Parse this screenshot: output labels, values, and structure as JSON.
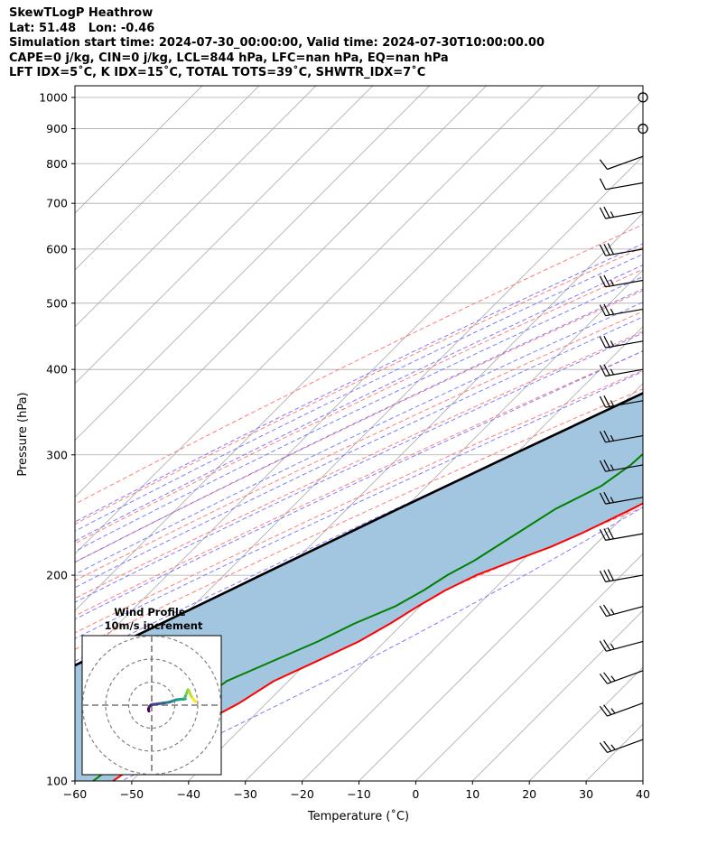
{
  "title_lines": [
    "SkewTLogP Heathrow",
    "Lat: 51.48   Lon: -0.46",
    "Simulation start time: 2024-07-30_00:00:00, Valid time: 2024-07-30T10:00:00.00",
    "CAPE=0 j/kg, CIN=0 j/kg, LCL=844 hPa, LFC=nan hPa, EQ=nan hPa",
    "LFT IDX=5˚C, K IDX=15˚C, TOTAL TOTS=39˚C, SHWTR_IDX=7˚C"
  ],
  "chart_data": {
    "type": "skewt",
    "xlabel": "Temperature (˚C)",
    "ylabel": "Pressure (hPa)",
    "xlim": [
      -60,
      40
    ],
    "ylim": [
      1040,
      100
    ],
    "x_ticks": [
      -60,
      -50,
      -40,
      -30,
      -20,
      -10,
      0,
      10,
      20,
      30,
      40
    ],
    "y_ticks": [
      1000,
      900,
      800,
      700,
      600,
      500,
      400,
      300,
      200,
      100
    ],
    "y_scale": "log",
    "grid": true,
    "colors": {
      "temperature": "#ff0000",
      "dewpoint": "#008000",
      "parcel": "#000000",
      "cape_fill": "#a3c6e0",
      "dry_adiabats": "#ff6666",
      "moist_adiabats": "#6666ff",
      "mixing_ratio": "#9933cc",
      "isotherms": "#aaaaaa"
    },
    "temperature": {
      "p": [
        1010,
        1000,
        970,
        950,
        900,
        850,
        800,
        780,
        750,
        720,
        700,
        650,
        620,
        600,
        550,
        500,
        460,
        420,
        400,
        380,
        350,
        300,
        270,
        250,
        230,
        220,
        210,
        200,
        190,
        180,
        170,
        160,
        150,
        140,
        130,
        120,
        110,
        100
      ],
      "t": [
        25.5,
        24,
        22,
        21.5,
        20.5,
        19.5,
        19,
        19.4,
        19.5,
        19.2,
        18.4,
        16,
        15.2,
        14.3,
        12,
        9.7,
        8.7,
        7.5,
        6.7,
        5.5,
        4.3,
        -1.5,
        -6,
        -9.8,
        -14.5,
        -17.5,
        -21.5,
        -25.6,
        -28.4,
        -30.4,
        -32.2,
        -34.6,
        -38.4,
        -42.6,
        -44.8,
        -48.4,
        -50.9,
        -53.3
      ]
    },
    "dewpoint": {
      "p": [
        1000,
        960,
        930,
        900,
        880,
        860,
        840,
        820,
        800,
        780,
        740,
        700,
        680,
        650,
        600,
        550,
        500,
        460,
        430,
        400,
        370,
        350,
        330,
        310,
        300,
        290,
        270,
        250,
        230,
        210,
        200,
        190,
        180,
        170,
        160,
        140,
        100
      ],
      "t": [
        13.3,
        13.8,
        12.1,
        10.4,
        9.5,
        7.2,
        6.9,
        8.1,
        10.2,
        9.5,
        5,
        3,
        5.3,
        9.6,
        11.6,
        11.5,
        9.4,
        7.1,
        5.4,
        1.9,
        -1.6,
        -6.7,
        -10.8,
        -13.5,
        -17.6,
        -17.8,
        -19.3,
        -23.3,
        -25.8,
        -28.5,
        -30.7,
        -32.2,
        -34.4,
        -38.5,
        -41.8,
        -50.9,
        -56.8
      ]
    },
    "parcel": {
      "p": [
        1010,
        844,
        700,
        600,
        500,
        400,
        300,
        250,
        200,
        150,
        100
      ],
      "t": [
        25.5,
        13.7,
        5.4,
        -1.7,
        -11.2,
        -23.6,
        -40.5,
        -51,
        -63.5,
        -79.5,
        -101
      ]
    },
    "wind_barbs": {
      "p": [
        1000,
        900,
        820,
        750,
        680,
        600,
        540,
        490,
        440,
        400,
        360,
        320,
        290,
        260,
        230,
        200,
        180,
        160,
        145,
        130,
        115
      ],
      "speed_kt": [
        0,
        0,
        10,
        10,
        25,
        30,
        25,
        25,
        25,
        25,
        25,
        25,
        25,
        25,
        30,
        30,
        25,
        25,
        25,
        25,
        25
      ],
      "direction_deg": [
        0,
        0,
        250,
        260,
        260,
        260,
        260,
        260,
        260,
        260,
        260,
        260,
        260,
        260,
        260,
        260,
        255,
        255,
        250,
        250,
        250
      ]
    },
    "hodograph": {
      "title": "Wind Profile",
      "subtitle": "10m/s increment",
      "rings": [
        10,
        20,
        30
      ],
      "u": [
        -1.2,
        -1.4,
        -1.3,
        -1.0,
        -0.6,
        -0.2,
        0.4,
        1.2,
        2.3,
        3.6,
        5.0,
        6.4,
        7.6,
        8.6,
        9.4,
        10.2,
        11.2,
        12.4,
        13.8,
        14.6,
        14.4,
        14.6,
        15.0,
        15.4,
        15.8,
        16.2,
        16.6,
        17.2,
        17.8,
        18.6,
        19.0
      ],
      "v": [
        -2.6,
        -2.1,
        -1.4,
        -0.6,
        -0.2,
        0.1,
        0.3,
        0.4,
        0.5,
        0.7,
        0.9,
        1.1,
        1.3,
        1.6,
        1.9,
        2.2,
        2.4,
        2.5,
        2.6,
        2.7,
        3.2,
        3.9,
        4.8,
        5.9,
        6.7,
        6.2,
        5.1,
        3.9,
        2.9,
        2.0,
        1.5
      ]
    }
  }
}
